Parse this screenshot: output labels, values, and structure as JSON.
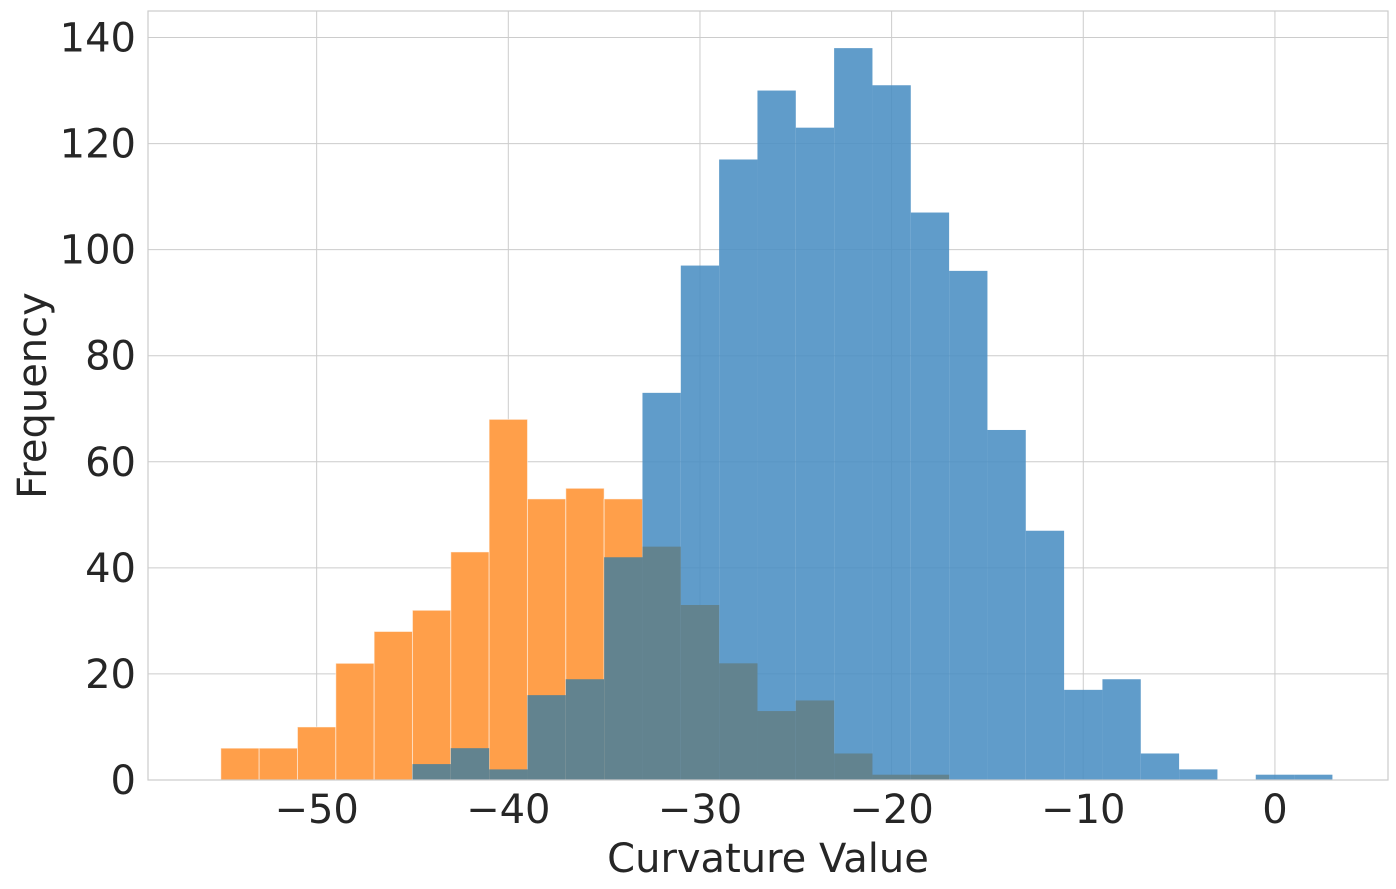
{
  "chart_data": {
    "type": "histogram",
    "title": "",
    "xlabel": "Curvature Value",
    "ylabel": "Frequency",
    "xlim": [
      -58.8,
      5.9
    ],
    "ylim": [
      0,
      145
    ],
    "xticks": [
      -50,
      -40,
      -30,
      -20,
      -10,
      0
    ],
    "xtick_labels": [
      "−50",
      "−40",
      "−30",
      "−20",
      "−10",
      "0"
    ],
    "yticks": [
      0,
      20,
      40,
      60,
      80,
      100,
      120,
      140
    ],
    "ytick_labels": [
      "0",
      "20",
      "40",
      "60",
      "80",
      "100",
      "120",
      "140"
    ],
    "grid": true,
    "legend": "none",
    "series": [
      {
        "color": "#4c8ec4",
        "bin_edges": [
          -45,
          -43,
          -41,
          -39,
          -37,
          -35,
          -33,
          -31,
          -29,
          -27,
          -25,
          -23,
          -21,
          -19,
          -17,
          -15,
          -13,
          -11,
          -9,
          -7,
          -5,
          -3,
          -1,
          1,
          3
        ],
        "counts": [
          3,
          6,
          2,
          16,
          19,
          42,
          44,
          33,
          22,
          13,
          15,
          5,
          1,
          1,
          0,
          0,
          0,
          0,
          0,
          0,
          0,
          0,
          0,
          0
        ],
        "overlay_counts": [
          0,
          0,
          0,
          0,
          0,
          0,
          73,
          97,
          117,
          130,
          123,
          138,
          131,
          107,
          96,
          66,
          47,
          17,
          19,
          5,
          2,
          0,
          1,
          1
        ]
      },
      {
        "color": "#ff9f4a",
        "bin_edges": [
          -55,
          -53,
          -51,
          -49,
          -47,
          -45,
          -43,
          -41,
          -39,
          -37,
          -35,
          -33
        ],
        "counts": [
          6,
          6,
          10,
          22,
          28,
          32,
          43,
          68,
          53,
          55,
          53
        ]
      }
    ]
  }
}
